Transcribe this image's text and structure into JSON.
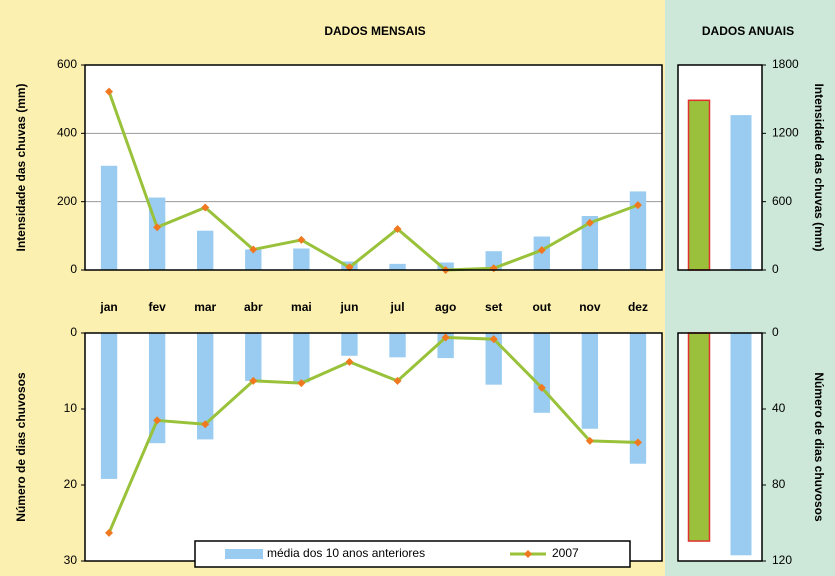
{
  "headers": {
    "monthly": "DADOS MENSAIS",
    "annual": "DADOS ANUAIS"
  },
  "chart_data": [
    {
      "type": "bar_line",
      "ylabel": "Intensidade das chuvas (mm)",
      "categories": [
        "jan",
        "fev",
        "mar",
        "abr",
        "mai",
        "jun",
        "jul",
        "ago",
        "set",
        "out",
        "nov",
        "dez"
      ],
      "ylim": [
        0,
        600
      ],
      "yticks": [
        0,
        200,
        400,
        600
      ],
      "grid": true,
      "y_inverted": false,
      "axis_side": "left",
      "series": [
        {
          "kind": "bar",
          "color": "#99ccf0",
          "values": [
            305,
            212,
            115,
            60,
            63,
            25,
            18,
            22,
            55,
            98,
            158,
            230
          ]
        },
        {
          "kind": "line",
          "color": "#99c23a",
          "marker_color": "#f07820",
          "values": [
            522,
            125,
            183,
            60,
            88,
            8,
            120,
            0,
            5,
            58,
            138,
            190
          ]
        }
      ]
    },
    {
      "type": "bar_line",
      "ylabel": "Número de dias chuvosos",
      "ylim": [
        0,
        30
      ],
      "yticks": [
        0,
        10,
        20,
        30
      ],
      "grid": false,
      "y_inverted": true,
      "axis_side": "left",
      "legend": "bottom",
      "series": [
        {
          "kind": "bar",
          "name": "média dos 10 anos anteriores",
          "color": "#99ccf0",
          "values": [
            19.2,
            14.5,
            14,
            6.3,
            6.5,
            3,
            3.2,
            3.3,
            6.8,
            10.5,
            12.6,
            17.2
          ]
        },
        {
          "kind": "line",
          "name": "2007",
          "color": "#99c23a",
          "marker_color": "#f07820",
          "values": [
            26.3,
            11.5,
            12,
            6.3,
            6.6,
            3.8,
            6.3,
            0.6,
            0.8,
            7.2,
            14.2,
            14.4
          ]
        }
      ]
    },
    {
      "type": "bar",
      "ylabel": "Intensidade das chuvas (mm)",
      "ylim": [
        0,
        1800
      ],
      "yticks": [
        0,
        600,
        1200,
        1800
      ],
      "grid": false,
      "y_inverted": false,
      "axis_side": "right",
      "series": [
        {
          "kind": "bar",
          "color": "#9bc13c",
          "edgecolor": "#e03030",
          "values": [
            1490
          ]
        },
        {
          "kind": "bar",
          "color": "#99ccf0",
          "values": [
            1360
          ]
        }
      ]
    },
    {
      "type": "bar",
      "ylabel": "Número de dias chuvosos",
      "ylim": [
        0,
        120
      ],
      "yticks": [
        0,
        40,
        80,
        120
      ],
      "grid": false,
      "y_inverted": true,
      "axis_side": "right",
      "series": [
        {
          "kind": "bar",
          "color": "#9bc13c",
          "edgecolor": "#e03030",
          "values": [
            109.5
          ]
        },
        {
          "kind": "bar",
          "color": "#99ccf0",
          "values": [
            117
          ]
        }
      ]
    }
  ]
}
